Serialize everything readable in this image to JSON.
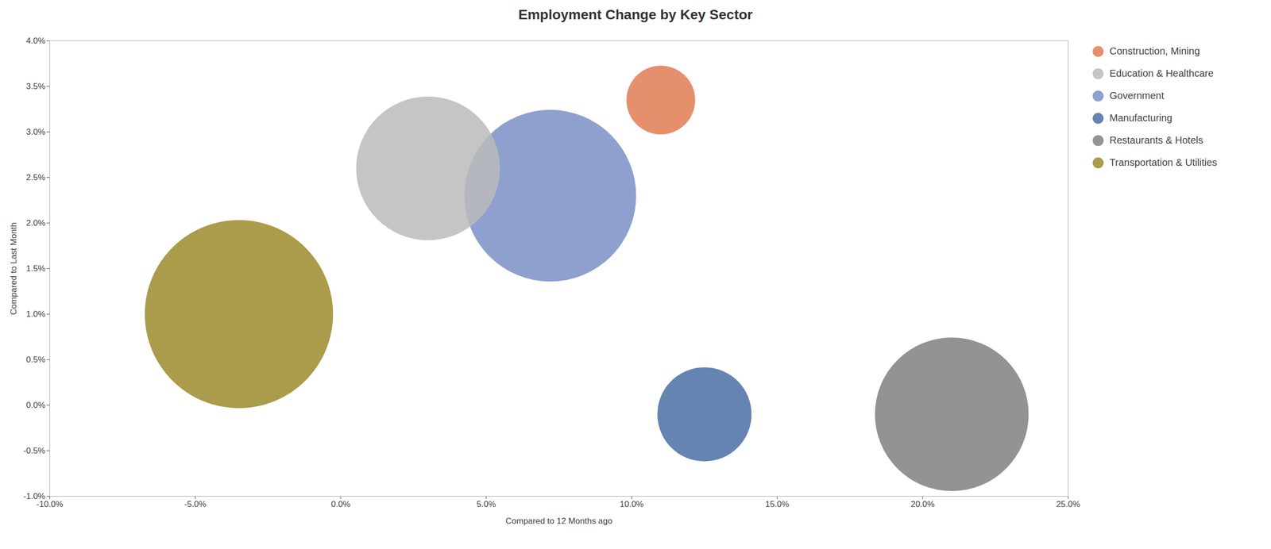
{
  "chart_data": {
    "type": "bubble",
    "title": "Employment Change by Key Sector",
    "xlabel": "Compared to 12 Months ago",
    "ylabel": "Compared to Last Month",
    "xlim": [
      -0.1,
      0.25
    ],
    "ylim": [
      -0.01,
      0.04
    ],
    "xticks": [
      {
        "value": -0.1,
        "label": "-10.0%"
      },
      {
        "value": -0.05,
        "label": "-5.0%"
      },
      {
        "value": 0.0,
        "label": "0.0%"
      },
      {
        "value": 0.05,
        "label": "5.0%"
      },
      {
        "value": 0.1,
        "label": "10.0%"
      },
      {
        "value": 0.15,
        "label": "15.0%"
      },
      {
        "value": 0.2,
        "label": "20.0%"
      },
      {
        "value": 0.25,
        "label": "25.0%"
      }
    ],
    "yticks": [
      {
        "value": -0.01,
        "label": "-1.0%"
      },
      {
        "value": -0.005,
        "label": "-0.5%"
      },
      {
        "value": 0.0,
        "label": "0.0%"
      },
      {
        "value": 0.005,
        "label": "0.5%"
      },
      {
        "value": 0.01,
        "label": "1.0%"
      },
      {
        "value": 0.015,
        "label": "1.5%"
      },
      {
        "value": 0.02,
        "label": "2.0%"
      },
      {
        "value": 0.025,
        "label": "2.5%"
      },
      {
        "value": 0.03,
        "label": "3.0%"
      },
      {
        "value": 0.035,
        "label": "3.5%"
      },
      {
        "value": 0.04,
        "label": "4.0%"
      }
    ],
    "grid": false,
    "legend": "right",
    "series": [
      {
        "name": "Construction, Mining",
        "color": "#E07B54",
        "x": [
          0.11
        ],
        "y": [
          0.0335
        ],
        "size": [
          8000
        ]
      },
      {
        "name": "Education & Healthcare",
        "color": "#BBBBBB",
        "x": [
          0.03
        ],
        "y": [
          0.026
        ],
        "size": [
          35000
        ]
      },
      {
        "name": "Government",
        "color": "#7B8FC7",
        "x": [
          0.072
        ],
        "y": [
          0.023
        ],
        "size": [
          50000
        ]
      },
      {
        "name": "Manufacturing",
        "color": "#4A6FA5",
        "x": [
          0.125
        ],
        "y": [
          -0.001
        ],
        "size": [
          15000
        ]
      },
      {
        "name": "Restaurants & Hotels",
        "color": "#808080",
        "x": [
          0.21
        ],
        "y": [
          -0.001
        ],
        "size": [
          40000
        ]
      },
      {
        "name": "Transportation & Utilities",
        "color": "#9B8B2B",
        "x": [
          -0.035
        ],
        "y": [
          0.01
        ],
        "size": [
          60000
        ]
      }
    ]
  }
}
